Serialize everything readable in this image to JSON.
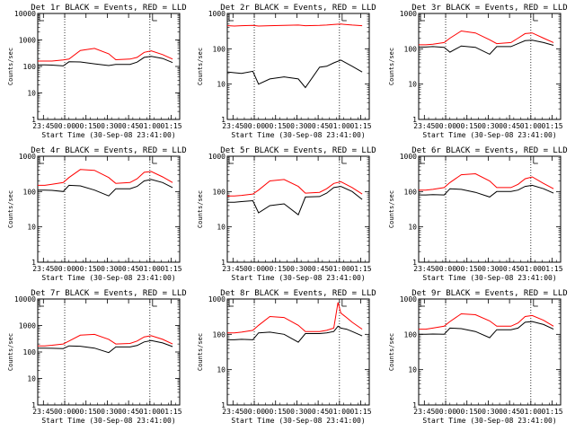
{
  "figure": {
    "x_tick_labels": [
      "23:45",
      "00:00",
      "00:15",
      "00:30",
      "00:45",
      "01:00",
      "01:15"
    ],
    "y_tick_labels": [
      "1",
      "10",
      "100",
      "1000",
      "10000"
    ],
    "xlabel": "Start Time (30-Sep-08 23:41:00)",
    "ylabel": "Counts/sec",
    "colors": {
      "events": "#000000",
      "lld": "#ff0000"
    }
  },
  "chart_data": [
    {
      "type": "line",
      "title": "Det 1r BLACK = Events, RED = LLD",
      "ylim": [
        1,
        10000
      ],
      "y_tick_labels": [
        "1",
        "10",
        "100",
        "1000",
        "10000"
      ],
      "log_y": true,
      "series": [
        {
          "name": "BLACK = Events",
          "x": [
            0,
            5,
            10,
            18,
            22,
            30,
            40,
            50,
            55,
            65,
            70,
            75,
            80,
            88,
            95
          ],
          "y": [
            115,
            115,
            112,
            105,
            150,
            148,
            125,
            108,
            120,
            120,
            145,
            220,
            240,
            200,
            140
          ]
        },
        {
          "name": "RED = LLD",
          "x": [
            0,
            5,
            10,
            18,
            22,
            30,
            40,
            50,
            55,
            65,
            70,
            75,
            80,
            88,
            95
          ],
          "y": [
            160,
            160,
            160,
            175,
            190,
            400,
            480,
            300,
            180,
            190,
            220,
            340,
            390,
            280,
            190
          ]
        }
      ]
    },
    {
      "type": "line",
      "title": "Det 2r BLACK = Events, RED = LLD",
      "ylim": [
        1,
        1000
      ],
      "y_tick_labels": [
        "1",
        "10",
        "100",
        "1000"
      ],
      "log_y": true,
      "series": [
        {
          "name": "BLACK = Events",
          "x": [
            0,
            5,
            10,
            18,
            22,
            30,
            40,
            50,
            55,
            65,
            70,
            75,
            80,
            88,
            95
          ],
          "y": [
            22,
            21,
            20,
            23,
            10,
            14,
            16,
            14,
            8,
            30,
            32,
            40,
            48,
            32,
            22
          ]
        },
        {
          "name": "RED = LLD",
          "x": [
            0,
            5,
            10,
            18,
            22,
            30,
            40,
            50,
            55,
            65,
            70,
            75,
            80,
            88,
            95
          ],
          "y": [
            450,
            440,
            450,
            460,
            440,
            450,
            460,
            470,
            450,
            460,
            470,
            490,
            500,
            470,
            450
          ]
        }
      ]
    },
    {
      "type": "line",
      "title": "Det 3r BLACK = Events, RED = LLD",
      "ylim": [
        1,
        1000
      ],
      "y_tick_labels": [
        "1",
        "10",
        "100",
        "1000"
      ],
      "log_y": true,
      "series": [
        {
          "name": "BLACK = Events",
          "x": [
            0,
            5,
            10,
            18,
            22,
            30,
            40,
            50,
            55,
            65,
            70,
            75,
            80,
            88,
            95
          ],
          "y": [
            112,
            112,
            115,
            110,
            80,
            120,
            110,
            70,
            115,
            115,
            140,
            170,
            175,
            150,
            125
          ]
        },
        {
          "name": "RED = LLD",
          "x": [
            0,
            5,
            10,
            18,
            22,
            30,
            40,
            50,
            55,
            65,
            70,
            75,
            80,
            88,
            95
          ],
          "y": [
            130,
            130,
            135,
            150,
            200,
            320,
            280,
            180,
            140,
            150,
            200,
            270,
            280,
            200,
            150
          ]
        }
      ]
    },
    {
      "type": "line",
      "title": "Det 4r BLACK = Events, RED = LLD",
      "ylim": [
        1,
        1000
      ],
      "y_tick_labels": [
        "1",
        "10",
        "100",
        "1000"
      ],
      "log_y": true,
      "series": [
        {
          "name": "BLACK = Events",
          "x": [
            0,
            5,
            10,
            18,
            22,
            30,
            40,
            50,
            55,
            65,
            70,
            75,
            80,
            88,
            95
          ],
          "y": [
            110,
            110,
            108,
            100,
            150,
            145,
            110,
            75,
            120,
            120,
            140,
            200,
            220,
            180,
            130
          ]
        },
        {
          "name": "RED = LLD",
          "x": [
            0,
            5,
            10,
            18,
            22,
            30,
            40,
            50,
            55,
            65,
            70,
            75,
            80,
            88,
            95
          ],
          "y": [
            150,
            150,
            160,
            180,
            250,
            420,
            400,
            250,
            170,
            180,
            230,
            350,
            370,
            260,
            180
          ]
        }
      ]
    },
    {
      "type": "line",
      "title": "Det 5r BLACK = Events, RED = LLD",
      "ylim": [
        1,
        1000
      ],
      "y_tick_labels": [
        "1",
        "10",
        "100",
        "1000"
      ],
      "log_y": true,
      "series": [
        {
          "name": "BLACK = Events",
          "x": [
            0,
            5,
            10,
            18,
            22,
            30,
            40,
            50,
            55,
            65,
            70,
            75,
            80,
            88,
            95
          ],
          "y": [
            50,
            50,
            52,
            55,
            25,
            40,
            45,
            22,
            70,
            72,
            90,
            130,
            140,
            100,
            60
          ]
        },
        {
          "name": "RED = LLD",
          "x": [
            0,
            5,
            10,
            18,
            22,
            30,
            40,
            50,
            55,
            65,
            70,
            75,
            80,
            88,
            95
          ],
          "y": [
            75,
            75,
            78,
            85,
            110,
            200,
            220,
            140,
            90,
            95,
            120,
            170,
            190,
            130,
            85
          ]
        }
      ]
    },
    {
      "type": "line",
      "title": "Det 6r BLACK = Events, RED = LLD",
      "ylim": [
        1,
        1000
      ],
      "y_tick_labels": [
        "1",
        "10",
        "100",
        "1000"
      ],
      "log_y": true,
      "series": [
        {
          "name": "BLACK = Events",
          "x": [
            0,
            5,
            10,
            18,
            22,
            30,
            40,
            50,
            55,
            65,
            70,
            75,
            80,
            88,
            95
          ],
          "y": [
            80,
            80,
            82,
            80,
            120,
            115,
            95,
            70,
            100,
            100,
            110,
            140,
            150,
            120,
            90
          ]
        },
        {
          "name": "RED = LLD",
          "x": [
            0,
            5,
            10,
            18,
            22,
            30,
            40,
            50,
            55,
            65,
            70,
            75,
            80,
            88,
            95
          ],
          "y": [
            110,
            110,
            115,
            130,
            180,
            300,
            320,
            200,
            130,
            130,
            160,
            230,
            260,
            170,
            120
          ]
        }
      ]
    },
    {
      "type": "line",
      "title": "Det 7r BLACK = Events, RED = LLD",
      "ylim": [
        1,
        10000
      ],
      "y_tick_labels": [
        "1",
        "10",
        "100",
        "1000",
        "10000"
      ],
      "log_y": true,
      "series": [
        {
          "name": "BLACK = Events",
          "x": [
            0,
            5,
            10,
            18,
            22,
            30,
            40,
            50,
            55,
            65,
            70,
            75,
            80,
            88,
            95
          ],
          "y": [
            140,
            140,
            138,
            135,
            170,
            165,
            140,
            95,
            155,
            155,
            175,
            240,
            270,
            220,
            160
          ]
        },
        {
          "name": "RED = LLD",
          "x": [
            0,
            5,
            10,
            18,
            22,
            30,
            40,
            50,
            55,
            65,
            70,
            75,
            80,
            88,
            95
          ],
          "y": [
            170,
            170,
            180,
            200,
            260,
            430,
            460,
            300,
            200,
            210,
            260,
            370,
            410,
            300,
            200
          ]
        }
      ]
    },
    {
      "type": "line",
      "title": "Det 8r BLACK = Events, RED = LLD",
      "ylim": [
        1,
        1000
      ],
      "y_tick_labels": [
        "1",
        "10",
        "100",
        "1000"
      ],
      "log_y": true,
      "series": [
        {
          "name": "BLACK = Events",
          "x": [
            0,
            5,
            10,
            18,
            22,
            30,
            40,
            50,
            55,
            65,
            70,
            75,
            78,
            80,
            84,
            88,
            95
          ],
          "y": [
            70,
            70,
            72,
            70,
            110,
            115,
            100,
            60,
            105,
            105,
            110,
            120,
            170,
            150,
            140,
            120,
            90
          ]
        },
        {
          "name": "RED = LLD",
          "x": [
            0,
            5,
            10,
            18,
            22,
            30,
            40,
            50,
            55,
            65,
            70,
            75,
            78,
            80,
            84,
            88,
            95
          ],
          "y": [
            110,
            110,
            115,
            130,
            180,
            320,
            300,
            180,
            120,
            120,
            130,
            150,
            800,
            400,
            300,
            220,
            140
          ]
        }
      ]
    },
    {
      "type": "line",
      "title": "Det 9r BLACK = Events, RED = LLD",
      "ylim": [
        1,
        1000
      ],
      "y_tick_labels": [
        "1",
        "10",
        "100",
        "1000"
      ],
      "log_y": true,
      "series": [
        {
          "name": "BLACK = Events",
          "x": [
            0,
            5,
            10,
            18,
            22,
            30,
            40,
            50,
            55,
            65,
            70,
            75,
            80,
            88,
            95
          ],
          "y": [
            100,
            100,
            102,
            100,
            150,
            145,
            120,
            80,
            135,
            135,
            150,
            220,
            230,
            190,
            140
          ]
        },
        {
          "name": "RED = LLD",
          "x": [
            0,
            5,
            10,
            18,
            22,
            30,
            40,
            50,
            55,
            65,
            70,
            75,
            80,
            88,
            95
          ],
          "y": [
            140,
            140,
            150,
            170,
            230,
            380,
            360,
            240,
            170,
            170,
            210,
            320,
            340,
            250,
            170
          ]
        }
      ]
    }
  ]
}
